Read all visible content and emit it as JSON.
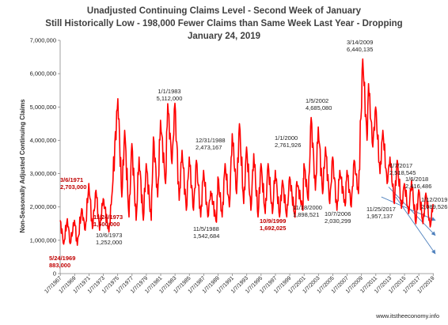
{
  "chart_data": {
    "type": "line",
    "title_lines": [
      "Unadjusted Continuing Claims Level - Second Week of January",
      "Still Historically Low - 198,000 Fewer Claims than Same Week Last Year - Dropping",
      "January 24, 2019"
    ],
    "ylabel": "Non-Seasonally Adjusted Continuing Claims",
    "xlabel": "",
    "ylim": [
      0,
      7000000
    ],
    "y_ticks": [
      "0",
      "1,000,000",
      "2,000,000",
      "3,000,000",
      "4,000,000",
      "5,000,000",
      "6,000,000",
      "7,000,000"
    ],
    "x_range": [
      1967.0,
      2019.1
    ],
    "x_ticks": [
      "1/7/1967",
      "1/7/1969",
      "1/7/1971",
      "1/7/1973",
      "1/7/1975",
      "1/7/1977",
      "1/7/1979",
      "1/7/1981",
      "1/7/1983",
      "1/7/1985",
      "1/7/1987",
      "1/7/1989",
      "1/7/1991",
      "1/7/1993",
      "1/7/1995",
      "1/7/1997",
      "1/7/1999",
      "1/7/2001",
      "1/7/2003",
      "1/7/2005",
      "1/7/2007",
      "1/7/2009",
      "1/7/2011",
      "1/7/2013",
      "1/7/2015",
      "1/7/2017",
      "1/7/2019"
    ],
    "grid": false,
    "legend": "none",
    "line_color": "#ff0000",
    "series": [
      {
        "x": [
          1967.0,
          1967.5,
          1968.0,
          1968.4,
          1969.0,
          1969.4,
          1970.0,
          1970.5,
          1971.0,
          1971.5,
          1972.0,
          1972.5,
          1973.0,
          1973.8,
          1974.2,
          1975.05,
          1975.6,
          1976.0,
          1976.6,
          1977.0,
          1977.6,
          1978.0,
          1978.6,
          1979.0,
          1979.7,
          1980.0,
          1980.6,
          1981.0,
          1981.7,
          1982.0,
          1982.6,
          1983.0,
          1983.6,
          1984.0,
          1984.6,
          1985.0,
          1985.6,
          1986.0,
          1986.6,
          1987.0,
          1987.6,
          1988.0,
          1988.8,
          1989.0,
          1989.6,
          1990.0,
          1990.6,
          1991.0,
          1991.6,
          1992.0,
          1992.6,
          1993.0,
          1993.6,
          1994.0,
          1994.6,
          1995.0,
          1995.6,
          1996.0,
          1996.6,
          1997.0,
          1997.6,
          1998.0,
          1998.6,
          1999.0,
          1999.75,
          2000.0,
          2000.85,
          2001.0,
          2001.6,
          2002.0,
          2002.6,
          2003.0,
          2003.6,
          2004.0,
          2004.6,
          2005.0,
          2005.6,
          2006.0,
          2006.75,
          2007.0,
          2007.6,
          2008.0,
          2008.6,
          2009.2,
          2009.8,
          2010.0,
          2010.6,
          2011.0,
          2011.6,
          2012.0,
          2012.6,
          2013.0,
          2013.6,
          2014.0,
          2014.6,
          2015.0,
          2015.6,
          2016.0,
          2016.6,
          2017.0,
          2017.6,
          2018.0,
          2018.6,
          2019.0
        ],
        "y": [
          1600000,
          883000,
          1650000,
          900000,
          1600000,
          850000,
          1950000,
          1300000,
          2703000,
          1350000,
          2500000,
          1300000,
          2250000,
          1252000,
          2300000,
          5250000,
          2300000,
          4300000,
          1700000,
          3900000,
          1600000,
          3500000,
          1600000,
          3300000,
          1600000,
          4100000,
          2300000,
          4600000,
          2700000,
          5100000,
          3300000,
          5112000,
          2200000,
          3700000,
          1900000,
          3500000,
          1900000,
          3400000,
          1700000,
          3100000,
          1700000,
          2473167,
          1542684,
          2900000,
          1700000,
          3300000,
          2000000,
          4200000,
          2400000,
          4500000,
          2100000,
          3800000,
          1900000,
          3600000,
          1700000,
          3300000,
          1800000,
          3300000,
          1800000,
          3100000,
          1700000,
          2800000,
          1700000,
          2900000,
          1692025,
          2761926,
          1898521,
          3300000,
          2200000,
          4685080,
          2500000,
          4400000,
          2400000,
          3800000,
          2100000,
          3500000,
          1900000,
          3100000,
          2030299,
          3100000,
          2000000,
          3400000,
          2400000,
          6440135,
          4000000,
          5700000,
          3800000,
          5000000,
          3000000,
          4300000,
          2700000,
          3500000,
          2100000,
          3400000,
          1957137,
          2700000,
          1800000,
          2800000,
          1500000,
          2518545,
          1500000,
          2416486,
          1400000,
          2089526
        ]
      }
    ],
    "annotations": [
      {
        "date": "5/24/1969",
        "value": "883,000",
        "color": "#c00000"
      },
      {
        "date": "3/6/1971",
        "value": "2,703,000",
        "color": "#c00000"
      },
      {
        "date": "10/6/1973",
        "value": "1,252,000",
        "color": "#222222"
      },
      {
        "date": "11/24/1973",
        "value": "1,600,000",
        "color": "#c00000"
      },
      {
        "date": "1/1/1983",
        "value": "5,112,000",
        "color": "#222222"
      },
      {
        "date": "12/31/1988",
        "value": "2,473,167",
        "color": "#222222"
      },
      {
        "date": "11/5/1988",
        "value": "1,542,684",
        "color": "#222222"
      },
      {
        "date": "1/1/2000",
        "value": "2,761,926",
        "color": "#222222"
      },
      {
        "date": "10/9/1999",
        "value": "1,692,025",
        "color": "#c00000"
      },
      {
        "date": "11/18/2000",
        "value": "1,898,521",
        "color": "#222222"
      },
      {
        "date": "1/5/2002",
        "value": "4,685,080",
        "color": "#222222"
      },
      {
        "date": "10/7/2006",
        "value": "2,030,299",
        "color": "#222222"
      },
      {
        "date": "3/14/2009",
        "value": "6,440,135",
        "color": "#222222"
      },
      {
        "date": "11/25/2017",
        "value": "1,957,137",
        "color": "#222222"
      },
      {
        "date": "1/7/2017",
        "value": "2,518,545",
        "color": "#222222"
      },
      {
        "date": "1/6/2018",
        "value": "2,416,486",
        "color": "#222222"
      },
      {
        "date": "1/12/2019",
        "value": "2,089,526",
        "color": "#222222"
      }
    ],
    "credit": "www.itstheeconomy.info",
    "trend_arrow_color": "#4f81bd"
  }
}
